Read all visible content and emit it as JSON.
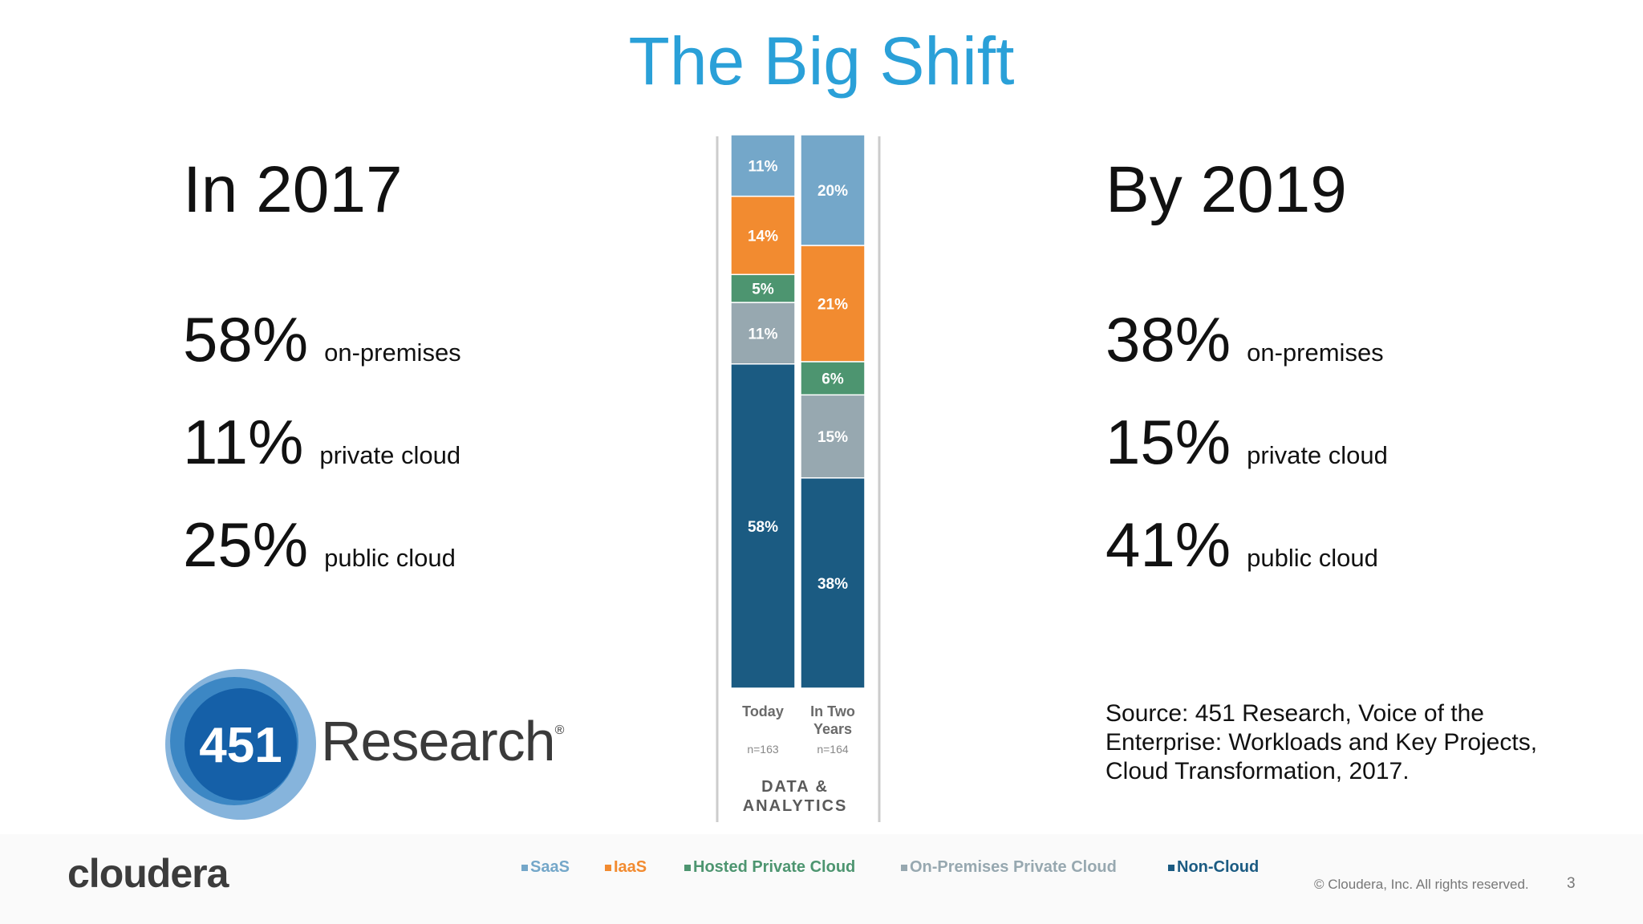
{
  "slide": {
    "title": "The Big Shift",
    "left": {
      "heading": "In 2017",
      "stats": [
        {
          "value": "58%",
          "label": "on-premises"
        },
        {
          "value": "11%",
          "label": "private cloud"
        },
        {
          "value": "25%",
          "label": "public cloud"
        }
      ]
    },
    "right": {
      "heading": "By 2019",
      "stats": [
        {
          "value": "38%",
          "label": "on-premises"
        },
        {
          "value": "15%",
          "label": "private cloud"
        },
        {
          "value": "41%",
          "label": "public cloud"
        }
      ]
    },
    "source": "Source: 451 Research, Voice of the Enterprise: Workloads and Key Projects, Cloud Transformation, 2017.",
    "logo": {
      "number": "451",
      "word": "Research",
      "mark": "®"
    },
    "brand": "cloudera",
    "copyright": "© Cloudera, Inc. All rights reserved.",
    "page_number": "3"
  },
  "chart_data": {
    "type": "bar",
    "stacked": true,
    "category_title": "DATA & ANALYTICS",
    "categories": [
      {
        "label": "Today",
        "n": "n=163"
      },
      {
        "label": "In Two Years",
        "n": "n=164"
      }
    ],
    "series": [
      {
        "name": "Non-Cloud",
        "color": "#1b5b82",
        "values": [
          58,
          38
        ]
      },
      {
        "name": "On-Premises Private Cloud",
        "color": "#97a8b0",
        "values": [
          11,
          15
        ]
      },
      {
        "name": "Hosted Private Cloud",
        "color": "#4d9570",
        "values": [
          5,
          6
        ]
      },
      {
        "name": "IaaS",
        "color": "#f28b30",
        "values": [
          14,
          21
        ]
      },
      {
        "name": "SaaS",
        "color": "#74a7c9",
        "values": [
          11,
          20
        ]
      }
    ],
    "legend": [
      {
        "name": "SaaS",
        "color": "#74a7c9"
      },
      {
        "name": "IaaS",
        "color": "#f28b30"
      },
      {
        "name": "Hosted Private Cloud",
        "color": "#4d9570"
      },
      {
        "name": "On-Premises Private Cloud",
        "color": "#97a8b0"
      },
      {
        "name": "Non-Cloud",
        "color": "#1b5b82"
      }
    ],
    "legend_position": "bottom",
    "grid": false
  }
}
